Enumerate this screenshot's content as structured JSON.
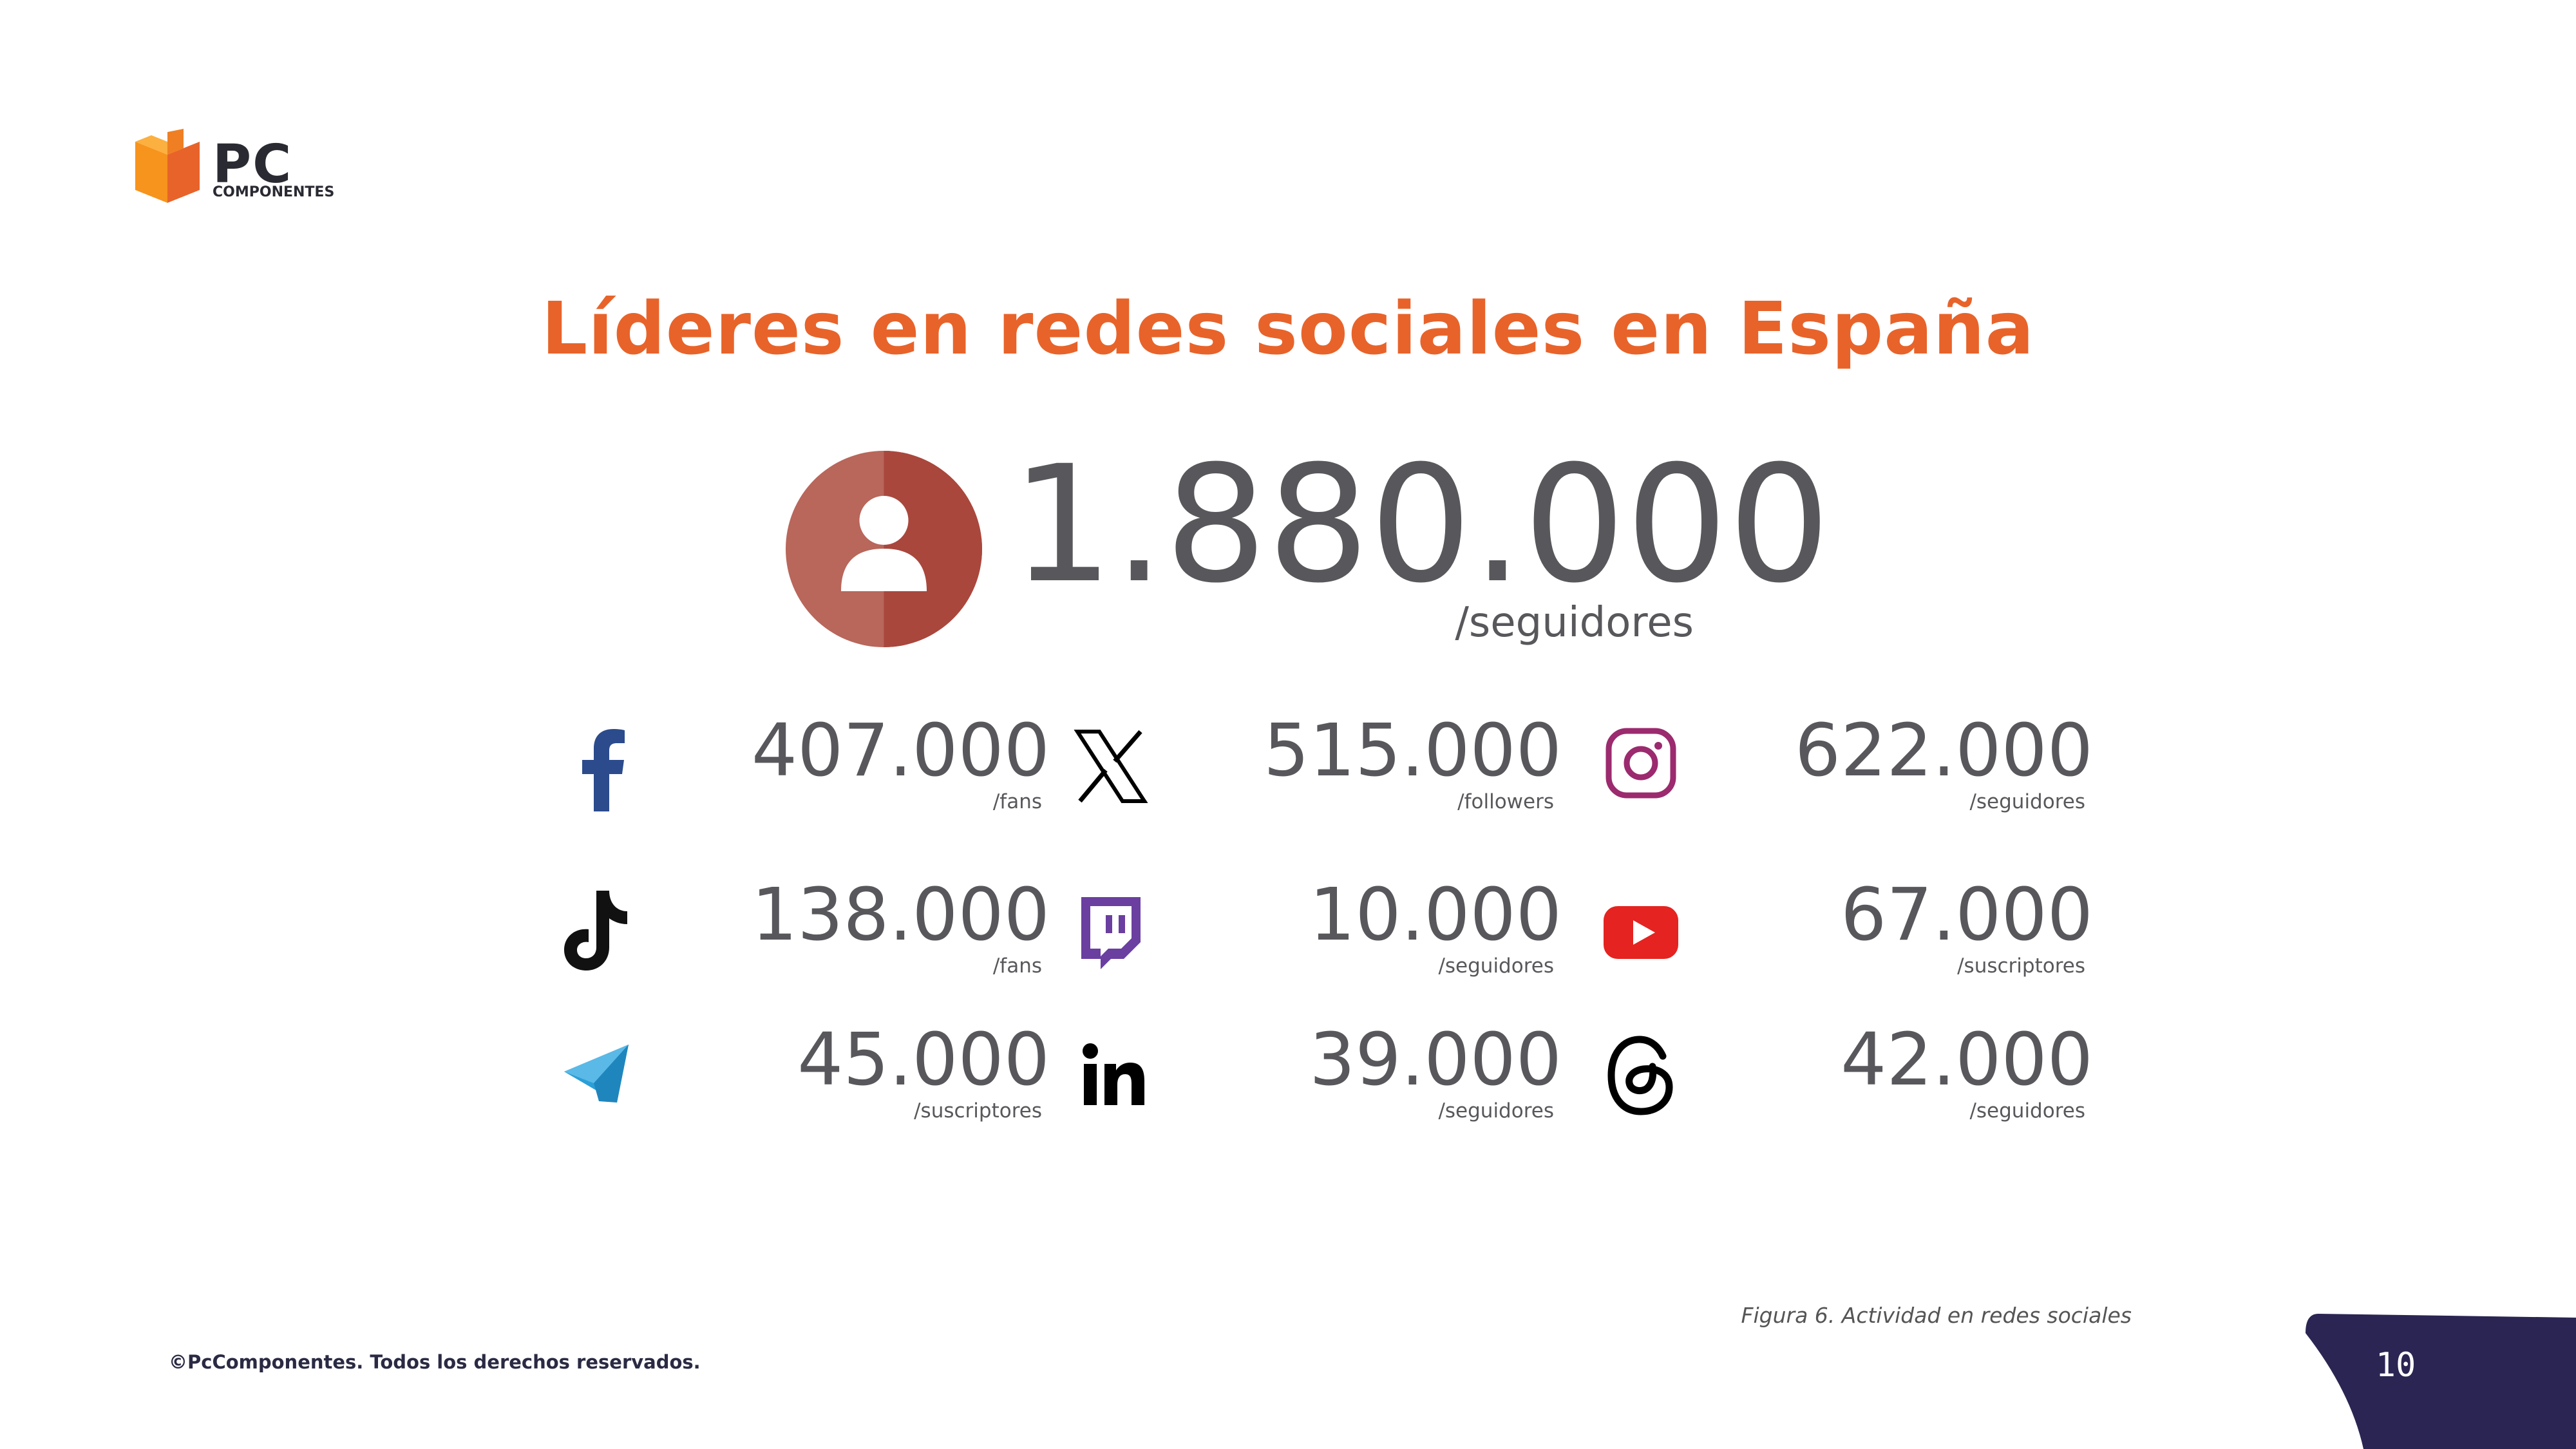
{
  "logo": {
    "word": "PC",
    "sub": "COMPONENTES"
  },
  "title": "Líderes en redes sociales en España",
  "total": {
    "value": "1.880.000",
    "unit": "/seguidores",
    "icon": "user-icon"
  },
  "stats": [
    {
      "network": "facebook",
      "icon": "facebook-icon",
      "value": "407.000",
      "unit": "/fans",
      "color": "#2b4b8c"
    },
    {
      "network": "x",
      "icon": "x-icon",
      "value": "515.000",
      "unit": "/followers",
      "color": "#000000"
    },
    {
      "network": "instagram",
      "icon": "instagram-icon",
      "value": "622.000",
      "unit": "/seguidores",
      "color": "#9b2a6e"
    },
    {
      "network": "tiktok",
      "icon": "tiktok-icon",
      "value": "138.000",
      "unit": "/fans",
      "color": "#111111"
    },
    {
      "network": "twitch",
      "icon": "twitch-icon",
      "value": "10.000",
      "unit": "/seguidores",
      "color": "#6a3fa0"
    },
    {
      "network": "youtube",
      "icon": "youtube-icon",
      "value": "67.000",
      "unit": "/suscriptores",
      "color": "#e52320"
    },
    {
      "network": "telegram",
      "icon": "telegram-icon",
      "value": "45.000",
      "unit": "/suscriptores",
      "color": "#2a9fd8"
    },
    {
      "network": "linkedin",
      "icon": "linkedin-icon",
      "value": "39.000",
      "unit": "/seguidores",
      "color": "#000000"
    },
    {
      "network": "threads",
      "icon": "threads-icon",
      "value": "42.000",
      "unit": "/seguidores",
      "color": "#000000"
    }
  ],
  "caption": "Figura 6. Actividad en redes sociales",
  "footer": {
    "copyright": "©PcComponentes. Todos los derechos reservados.",
    "page_number": "10"
  },
  "colors": {
    "accent": "#e8632a",
    "text": "#58585c",
    "user_circle": "#b3574a",
    "footer_shape": "#2a2552"
  }
}
